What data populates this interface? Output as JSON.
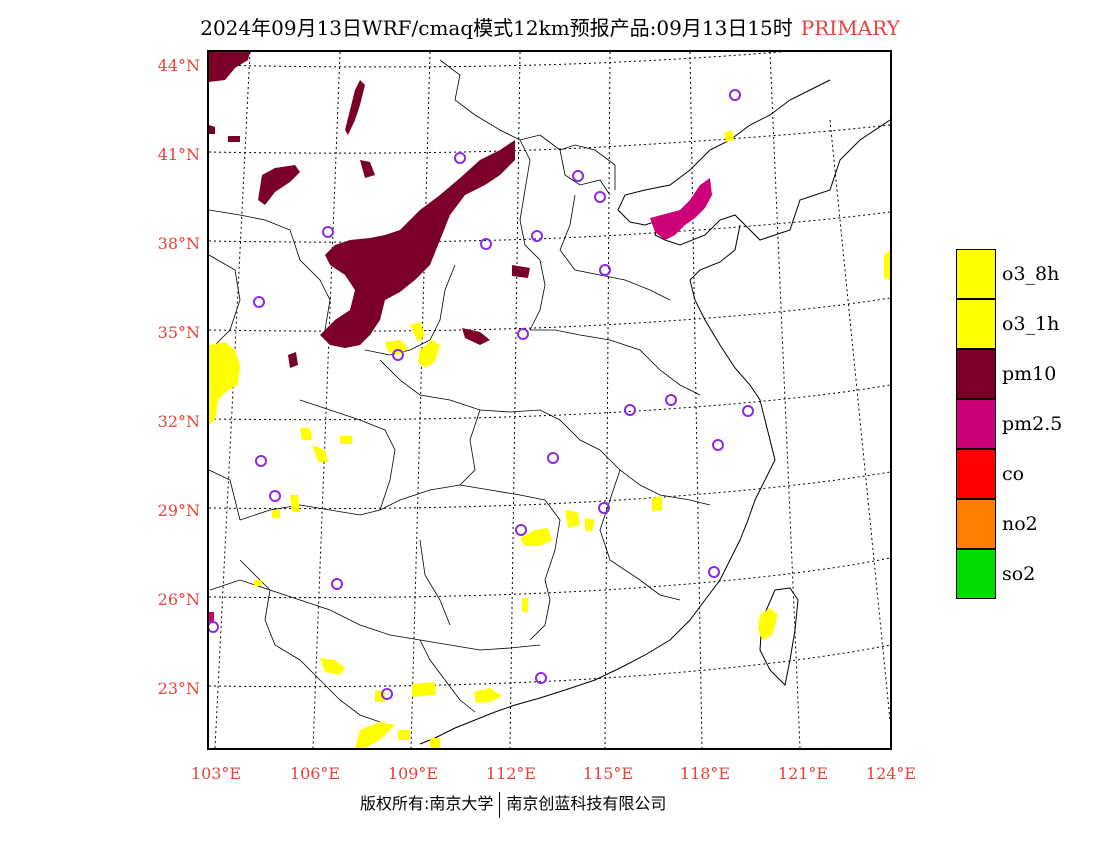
{
  "title": {
    "main": "2024年09月13日WRF/cmaq模式12km预报产品:09月13日15时",
    "tag": "PRIMARY"
  },
  "axes": {
    "lat_labels": [
      "44°N",
      "41°N",
      "38°N",
      "35°N",
      "32°N",
      "29°N",
      "26°N",
      "23°N"
    ],
    "lon_labels": [
      "103°E",
      "106°E",
      "109°E",
      "112°E",
      "115°E",
      "118°E",
      "121°E",
      "124°E"
    ]
  },
  "legend": [
    {
      "label": "o3_8h",
      "color": "#ffff00"
    },
    {
      "label": "o3_1h",
      "color": "#ffff00"
    },
    {
      "label": "pm10",
      "color": "#7a0028"
    },
    {
      "label": "pm2.5",
      "color": "#cc0077"
    },
    {
      "label": "co",
      "color": "#ff0000"
    },
    {
      "label": "no2",
      "color": "#ff7f00"
    },
    {
      "label": "so2",
      "color": "#00dd00"
    }
  ],
  "footer": {
    "left": "版权所有:南京大学",
    "right": "南京创蓝科技有限公司"
  },
  "colors": {
    "accent_text": "#e8413c",
    "station_marker": "#8a2be2",
    "pm10": "#7a0028",
    "pm25": "#cc0077",
    "o3": "#ffff00"
  }
}
